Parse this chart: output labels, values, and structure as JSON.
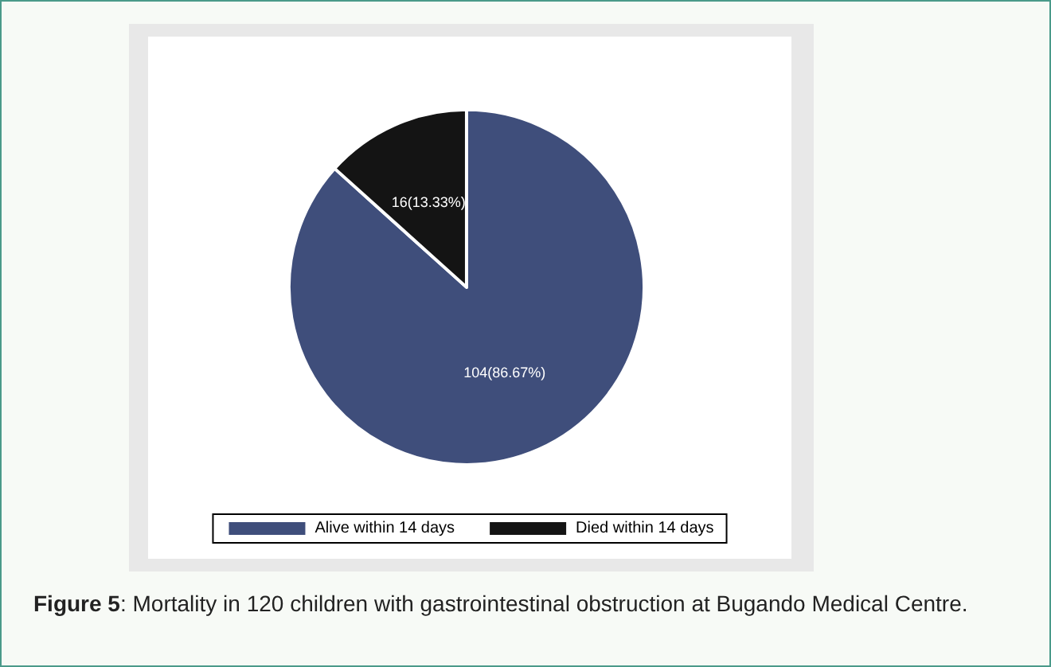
{
  "chart_data": {
    "type": "pie",
    "categories": [
      "Alive within 14 days",
      "Died within 14 days"
    ],
    "values": [
      104,
      16
    ],
    "value_labels": [
      "104(86.67%)",
      "16(13.33%)"
    ],
    "colors": [
      "#3f4e7b",
      "#141414"
    ],
    "legend": "bottom",
    "annotations": [
      "Figure 5: Mortality in 120 children with gastrointestinal obstruction at Bugando Medical Centre."
    ]
  }
}
